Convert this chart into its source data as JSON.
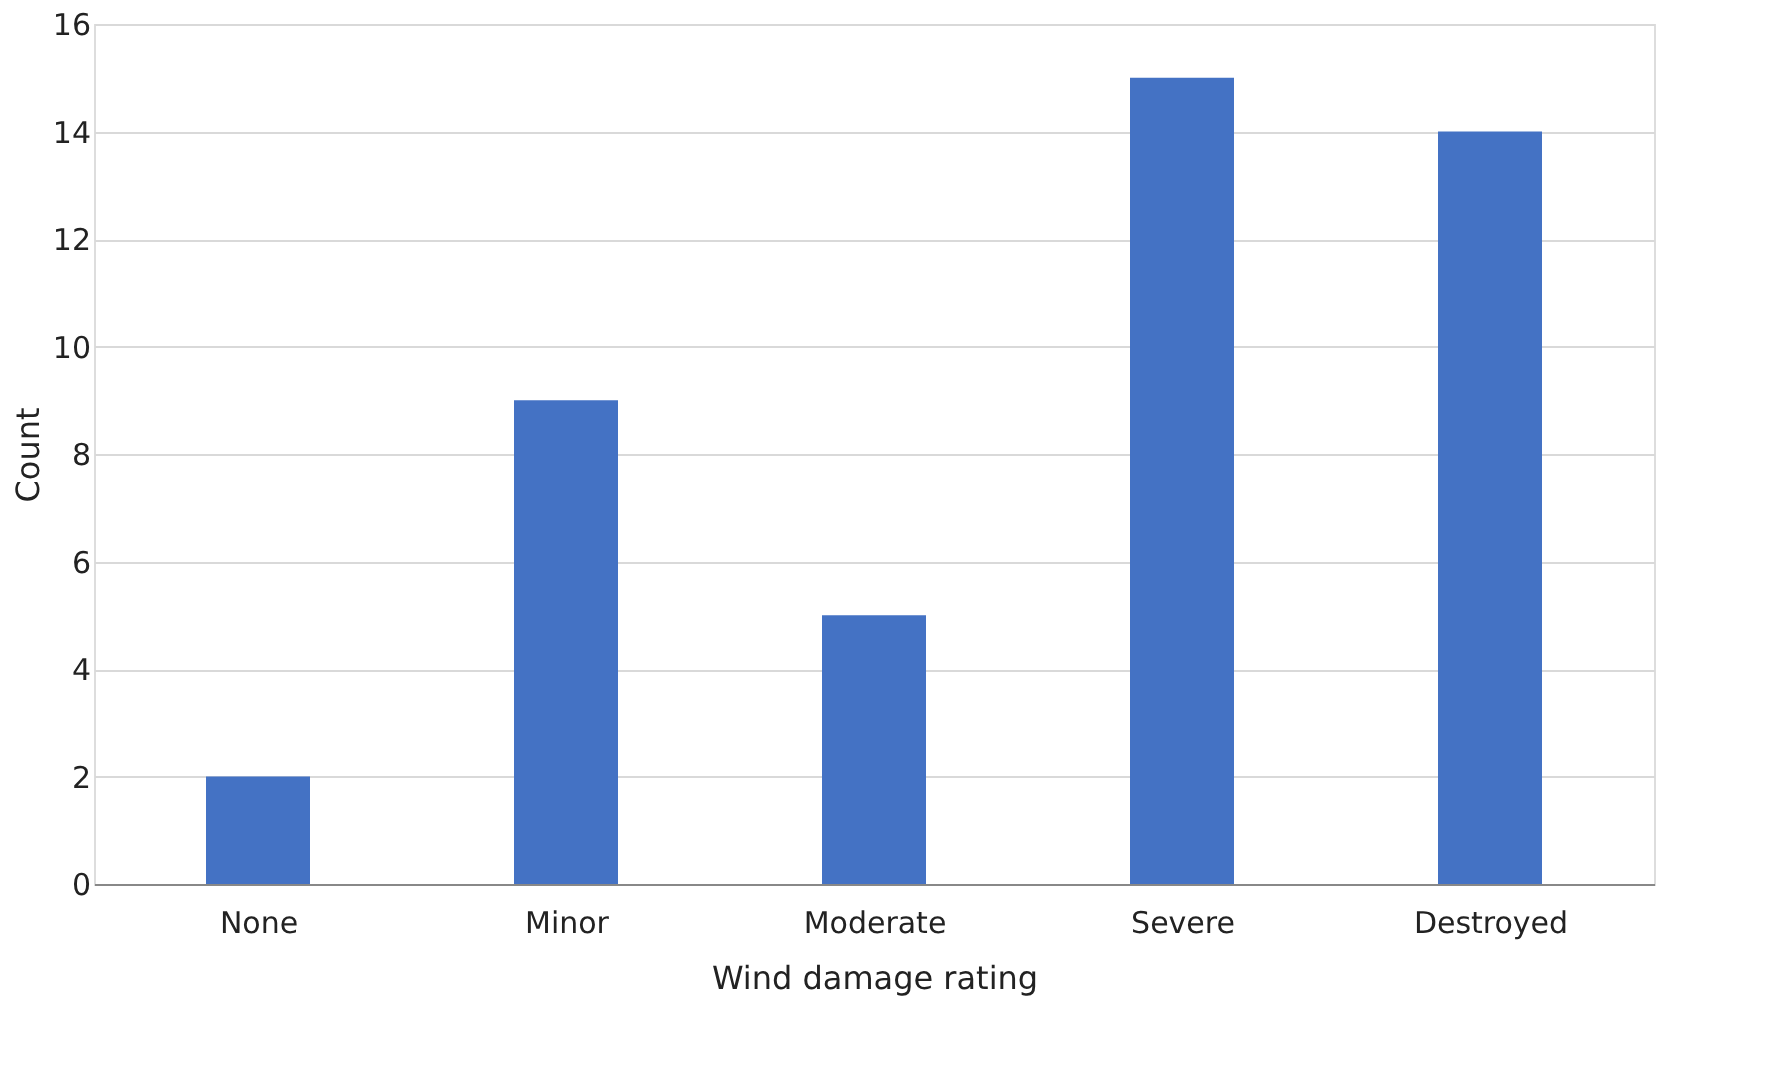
{
  "chart_data": {
    "type": "bar",
    "xlabel": "Wind damage rating",
    "ylabel": "Count",
    "categories": [
      "None",
      "Minor",
      "Moderate",
      "Severe",
      "Destroyed"
    ],
    "values": [
      2,
      9,
      5,
      15,
      14
    ],
    "color": "#4472c4",
    "ylim": [
      0,
      16
    ],
    "yticks": [
      0,
      2,
      4,
      6,
      8,
      10,
      12,
      14,
      16
    ],
    "grid": "y"
  }
}
